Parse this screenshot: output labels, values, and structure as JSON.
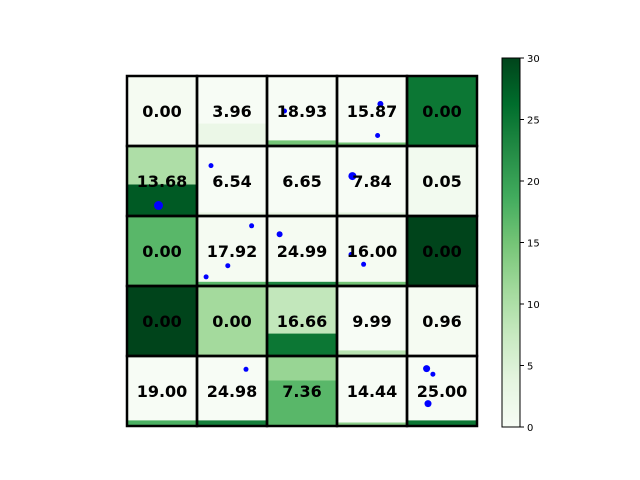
{
  "chart_data": {
    "type": "heatmap",
    "rows": 5,
    "cols": 5,
    "labels": [
      [
        "0.00",
        "3.96",
        "18.93",
        "15.87",
        "0.00"
      ],
      [
        "13.68",
        "6.54",
        "6.65",
        "7.84",
        "0.05"
      ],
      [
        "0.00",
        "17.92",
        "24.99",
        "16.00",
        "0.00"
      ],
      [
        "0.00",
        "0.00",
        "16.66",
        "9.99",
        "0.96"
      ],
      [
        "19.00",
        "24.98",
        "7.36",
        "14.44",
        "25.00"
      ]
    ],
    "top_values": [
      [
        0.5,
        0,
        0,
        0,
        25
      ],
      [
        10,
        0,
        0,
        0,
        1
      ],
      [
        17,
        0.5,
        0.5,
        0.5,
        30
      ],
      [
        30,
        11,
        8,
        0,
        0.5
      ],
      [
        0,
        0,
        12,
        0,
        0
      ]
    ],
    "bottom_fill": [
      [
        null,
        null,
        null,
        null,
        null
      ],
      [
        {
          "frac": 0.45,
          "value": 28
        },
        null,
        null,
        null,
        null
      ],
      [
        null,
        null,
        null,
        null,
        null
      ],
      [
        null,
        null,
        {
          "frac": 0.32,
          "value": 25
        },
        null,
        null
      ],
      [
        null,
        null,
        {
          "frac": 0.65,
          "value": 17
        },
        null,
        null
      ]
    ],
    "bar_value": [
      [
        0,
        2.5,
        15,
        15,
        0
      ],
      [
        0,
        3,
        3,
        4,
        0
      ],
      [
        0,
        17,
        23,
        15,
        0
      ],
      [
        0,
        0,
        15,
        9,
        0
      ],
      [
        18,
        24,
        0,
        13,
        25
      ]
    ],
    "bar_frac": [
      [
        0,
        0.32,
        0.08,
        0.05,
        0
      ],
      [
        0,
        0.05,
        0.05,
        0.05,
        0
      ],
      [
        0,
        0.06,
        0.06,
        0.06,
        0
      ],
      [
        0,
        0,
        0,
        0.08,
        0
      ],
      [
        0.08,
        0.08,
        0,
        0.05,
        0.08
      ]
    ],
    "points": [
      {
        "x": 2.25,
        "y": 0.5,
        "r": 2.5
      },
      {
        "x": 3.62,
        "y": 0.4,
        "r": 3
      },
      {
        "x": 3.58,
        "y": 0.85,
        "r": 2.5
      },
      {
        "x": 1.2,
        "y": 1.28,
        "r": 2.5
      },
      {
        "x": 0.45,
        "y": 1.85,
        "r": 4.5
      },
      {
        "x": 3.22,
        "y": 1.43,
        "r": 4
      },
      {
        "x": 1.78,
        "y": 2.14,
        "r": 2.5
      },
      {
        "x": 2.18,
        "y": 2.26,
        "r": 3
      },
      {
        "x": 3.2,
        "y": 2.55,
        "r": 2.5
      },
      {
        "x": 1.44,
        "y": 2.71,
        "r": 2.5
      },
      {
        "x": 3.38,
        "y": 2.69,
        "r": 2.5
      },
      {
        "x": 1.13,
        "y": 2.87,
        "r": 2.5
      },
      {
        "x": 1.7,
        "y": 4.19,
        "r": 2.5
      },
      {
        "x": 4.28,
        "y": 4.18,
        "r": 3.5
      },
      {
        "x": 4.37,
        "y": 4.26,
        "r": 2.5
      },
      {
        "x": 4.3,
        "y": 4.68,
        "r": 3.5
      }
    ],
    "colorbar": {
      "min": 0,
      "max": 30,
      "ticks": [
        0,
        5,
        10,
        15,
        20,
        25,
        30
      ],
      "tick_labels": [
        "0",
        "5",
        "10",
        "15",
        "20",
        "25",
        "30"
      ],
      "colormap": "Greens"
    },
    "grid": true,
    "title": "",
    "xlabel": "",
    "ylabel": ""
  },
  "colors": {
    "point": "#0000ff",
    "grid": "#000000",
    "cmap_stops": [
      "#f7fcf5",
      "#e5f5e0",
      "#c7e9c0",
      "#a1d99b",
      "#74c476",
      "#41ab5d",
      "#238b45",
      "#006d2c",
      "#00441b"
    ]
  }
}
